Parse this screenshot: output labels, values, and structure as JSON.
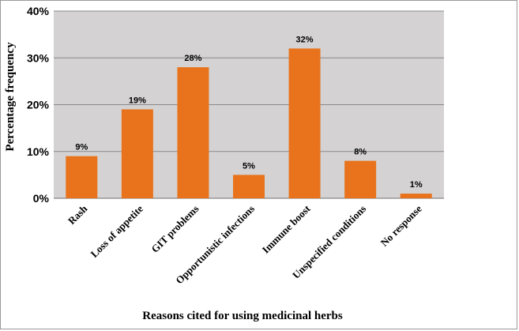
{
  "chart_data": {
    "type": "bar",
    "categories": [
      "Rash",
      "Loss of appetite",
      "GIT problems",
      "Opportunistic infections",
      "Immune boost",
      "Unspecified conditions",
      "No response"
    ],
    "values": [
      9,
      19,
      28,
      5,
      32,
      8,
      1
    ],
    "data_labels": [
      "9%",
      "19%",
      "28%",
      "5%",
      "32%",
      "8%",
      "1%"
    ],
    "title": "",
    "xlabel": "Reasons cited for using medicinal herbs",
    "ylabel": "Percentage frequency",
    "ylim": [
      0,
      40
    ],
    "yticks": [
      0,
      10,
      20,
      30,
      40
    ],
    "ytick_labels": [
      "0%",
      "10%",
      "20%",
      "30%",
      "40%"
    ],
    "grid": true,
    "legend": "none",
    "bar_color": "#e8731c",
    "plot_background": "#d4d2d2"
  }
}
